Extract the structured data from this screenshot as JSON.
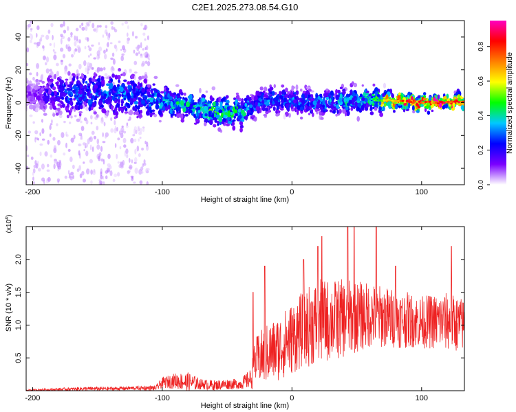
{
  "figure": {
    "title": "C2E1.2025.273.08.54.G10"
  },
  "chart_data": [
    {
      "type": "heatmap",
      "xlabel": "Height of straight line (km)",
      "ylabel": "Frequency (Hz)",
      "xlim": [
        -205,
        133
      ],
      "ylim": [
        -50,
        50
      ],
      "xticks": [
        -200,
        -100,
        0,
        100
      ],
      "yticks": [
        -40,
        -20,
        0,
        20,
        40
      ],
      "colorbar": {
        "label": "Normalized spectral amplitude",
        "range": [
          0,
          0.95
        ],
        "ticks": [
          "0.0",
          "0.2",
          "0.4",
          "0.6",
          "0.8"
        ],
        "colormap": [
          "#ffffff",
          "#7a00ff",
          "#0000ff",
          "#00c8ff",
          "#00ff00",
          "#ffff00",
          "#ff8000",
          "#ff0000",
          "#ff00c0"
        ]
      },
      "ridge": {
        "description_points_x": [
          -200,
          -180,
          -160,
          -140,
          -120,
          -100,
          -80,
          -60,
          -40,
          -30,
          -20,
          0,
          20,
          40,
          60,
          80,
          100,
          120,
          133
        ],
        "center_freq": [
          5,
          5,
          6,
          6,
          4,
          1,
          -2,
          -5,
          -6,
          -2,
          2,
          1,
          0,
          1,
          2,
          1,
          0,
          0,
          1
        ],
        "spread_hz": [
          6,
          8,
          8,
          9,
          8,
          6,
          5,
          6,
          6,
          5,
          5,
          5,
          5,
          5,
          5,
          3,
          3,
          2.5,
          3
        ],
        "peak_amplitude": [
          0.1,
          0.25,
          0.3,
          0.3,
          0.3,
          0.35,
          0.4,
          0.45,
          0.4,
          0.3,
          0.3,
          0.3,
          0.3,
          0.35,
          0.4,
          0.75,
          0.8,
          0.85,
          0.8
        ]
      },
      "scatter_band": {
        "x_range": [
          -205,
          -110
        ],
        "freq_range": [
          -50,
          50
        ],
        "amplitude": 0.05
      }
    },
    {
      "type": "line",
      "xlabel": "Height of straight line (km)",
      "ylabel": "SNR (10 * v/v)",
      "scale_label": "(x10",
      "scale_exponent": "4",
      "scale_suffix": ")",
      "xlim": [
        -205,
        133
      ],
      "ylim": [
        0,
        2.5
      ],
      "xticks": [
        -200,
        -100,
        0,
        100
      ],
      "yticks": [
        "0.5",
        "1.0",
        "1.5",
        "2.0"
      ],
      "color": "#ee2222",
      "envelope_x": [
        -205,
        -180,
        -160,
        -140,
        -120,
        -105,
        -100,
        -90,
        -80,
        -70,
        -60,
        -50,
        -40,
        -32,
        -30,
        -28,
        -25,
        -20,
        -10,
        0,
        10,
        20,
        40,
        60,
        80,
        100,
        120,
        133
      ],
      "mean": [
        0.01,
        0.02,
        0.03,
        0.03,
        0.04,
        0.04,
        0.12,
        0.15,
        0.13,
        0.1,
        0.08,
        0.1,
        0.1,
        0.18,
        0.3,
        0.45,
        0.5,
        0.55,
        0.65,
        0.8,
        0.95,
        1.05,
        1.1,
        1.15,
        1.1,
        1.05,
        1.05,
        1.0
      ],
      "noise": [
        0.01,
        0.02,
        0.03,
        0.03,
        0.03,
        0.04,
        0.08,
        0.12,
        0.15,
        0.08,
        0.08,
        0.08,
        0.08,
        0.15,
        0.3,
        0.35,
        0.4,
        0.45,
        0.5,
        0.55,
        0.6,
        0.65,
        0.6,
        0.5,
        0.45,
        0.4,
        0.45,
        0.4
      ],
      "peaks": [
        [
          -30,
          1.5
        ],
        [
          -21,
          1.9
        ],
        [
          9,
          2.0
        ],
        [
          20,
          2.2
        ],
        [
          23,
          2.35
        ],
        [
          43,
          2.6
        ],
        [
          48,
          2.7
        ],
        [
          65,
          2.5
        ],
        [
          80,
          1.9
        ],
        [
          123,
          2.2
        ]
      ]
    }
  ]
}
